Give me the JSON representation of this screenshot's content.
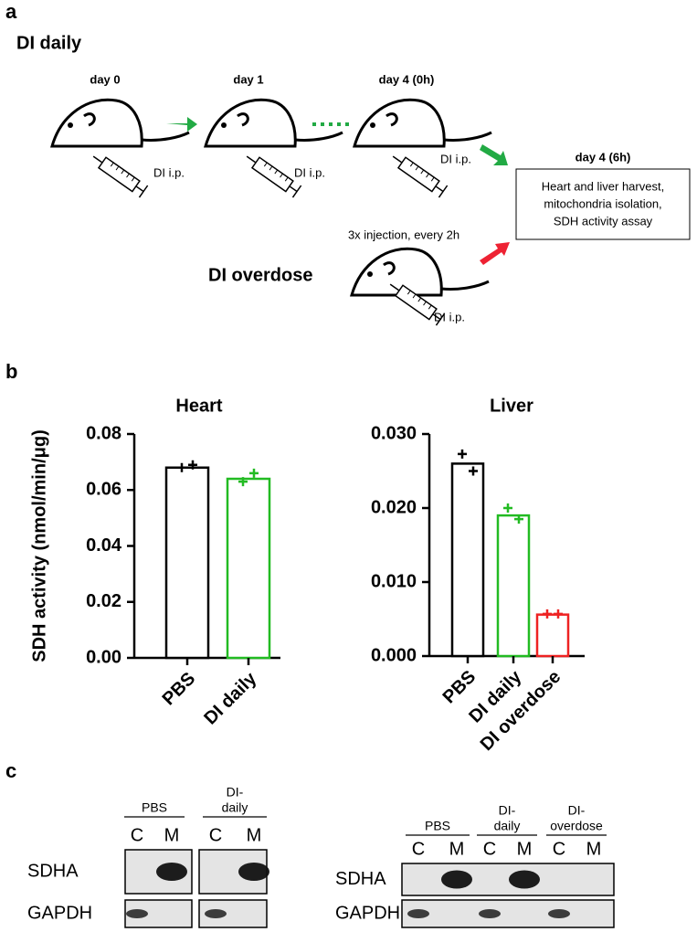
{
  "panel_a": {
    "label": "a",
    "title": "DI daily",
    "steps": [
      "day 0",
      "day 1",
      "day 4 (0h)"
    ],
    "injection": "DI i.p.",
    "endpoint": "day 4 (6h)",
    "box_lines": [
      "Heart and liver harvest,",
      "mitochondria isolation,",
      "SDH activity assay"
    ],
    "overdose_note": "3x injection, every 2h",
    "overdose": "DI overdose"
  },
  "panel_b": {
    "label": "b"
  },
  "chart_data": [
    {
      "type": "bar",
      "title": "Heart",
      "ylabel": "SDH activity (nmol/min/μg)",
      "categories": [
        "PBS",
        "DI daily"
      ],
      "values": [
        0.068,
        0.064
      ],
      "colors": [
        "#000000",
        "#22bb22"
      ],
      "points": [
        [
          0.068,
          0.069
        ],
        [
          0.063,
          0.066
        ]
      ],
      "ylim": [
        0,
        0.08
      ],
      "yticks": [
        {
          "value": 0,
          "label": "0.00"
        },
        0.02,
        0.04,
        0.06,
        0.08
      ]
    },
    {
      "type": "bar",
      "title": "Liver",
      "categories": [
        "PBS",
        "DI daily",
        "DI overdose"
      ],
      "values": [
        0.026,
        0.019,
        0.0056
      ],
      "colors": [
        "#000000",
        "#22bb22",
        "#ee2222"
      ],
      "points": [
        [
          0.0273,
          0.025
        ],
        [
          0.02,
          0.0185
        ],
        [
          0.0057,
          0.0057
        ]
      ],
      "ylim": [
        0,
        0.03
      ],
      "yticks": [
        {
          "value": 0,
          "label": "0.000"
        },
        {
          "value": 0.01,
          "label": "0.010"
        },
        {
          "value": 0.02,
          "label": "0.020"
        },
        {
          "value": 0.03,
          "label": "0.030"
        }
      ]
    }
  ],
  "panel_c": {
    "label": "c",
    "blots": [
      {
        "groups": [
          [
            "PBS"
          ],
          [
            "DI-",
            "daily"
          ]
        ],
        "lanes": [
          "C",
          "M",
          "C",
          "M"
        ],
        "rows": [
          "SDHA",
          "GAPDH"
        ]
      },
      {
        "groups": [
          [
            "PBS"
          ],
          [
            "DI-",
            "daily"
          ],
          [
            "DI-",
            "overdose"
          ]
        ],
        "lanes": [
          "C",
          "M",
          "C",
          "M",
          "C",
          "M"
        ],
        "rows": [
          "SDHA",
          "GAPDH"
        ]
      }
    ]
  }
}
